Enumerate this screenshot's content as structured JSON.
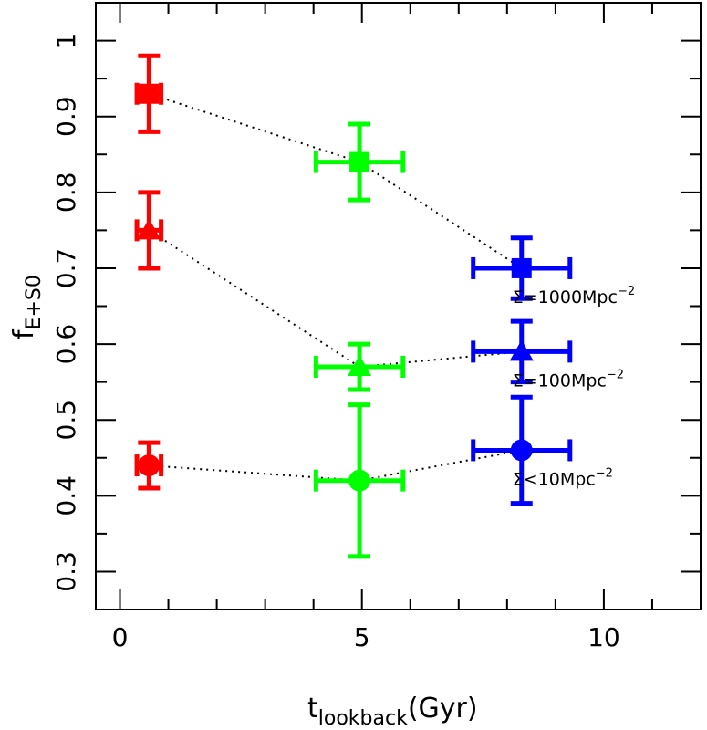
{
  "chart_data": {
    "type": "scatter",
    "xlabel": {
      "main": "t",
      "sub": "lookback",
      "unit": "(Gyr)"
    },
    "ylabel": {
      "main": "f",
      "sub": "E+S0"
    },
    "xlim": [
      -0.5,
      12
    ],
    "ylim": [
      0.25,
      1.05
    ],
    "xticks": [
      0,
      5,
      10
    ],
    "yticks": [
      0.3,
      0.4,
      0.5,
      0.6,
      0.7,
      0.8,
      0.9,
      1
    ],
    "colors": {
      "low_z": "#ff0000",
      "mid_z": "#00ff00",
      "high_z": "#0000ff"
    },
    "series": [
      {
        "annotation": {
          "text": "Σ=1000Mpc",
          "sup": "−2"
        },
        "marker": "square",
        "points": [
          {
            "x": 0.6,
            "y": 0.93,
            "xerr": 0.25,
            "yerr": 0.05,
            "color": "#ff0000"
          },
          {
            "x": 4.95,
            "y": 0.84,
            "xerr": 0.9,
            "yerr": 0.05,
            "color": "#00ff00"
          },
          {
            "x": 8.3,
            "y": 0.7,
            "xerr": 1.0,
            "yerr": 0.04,
            "color": "#0000ff"
          }
        ]
      },
      {
        "annotation": {
          "text": "Σ=100Mpc",
          "sup": "−2"
        },
        "marker": "triangle",
        "points": [
          {
            "x": 0.6,
            "y": 0.75,
            "xerr": 0.25,
            "yerr": 0.05,
            "color": "#ff0000"
          },
          {
            "x": 4.95,
            "y": 0.57,
            "xerr": 0.9,
            "yerr": 0.03,
            "color": "#00ff00"
          },
          {
            "x": 8.3,
            "y": 0.59,
            "xerr": 1.0,
            "yerr": 0.04,
            "color": "#0000ff"
          }
        ]
      },
      {
        "annotation": {
          "text": "Σ<10Mpc",
          "sup": "−2"
        },
        "marker": "circle",
        "points": [
          {
            "x": 0.6,
            "y": 0.44,
            "xerr": 0.25,
            "yerr": 0.03,
            "color": "#ff0000"
          },
          {
            "x": 4.95,
            "y": 0.42,
            "xerr": 0.9,
            "yerr": 0.1,
            "color": "#00ff00"
          },
          {
            "x": 8.3,
            "y": 0.46,
            "xerr": 1.0,
            "yerr": 0.07,
            "color": "#0000ff"
          }
        ]
      }
    ]
  }
}
